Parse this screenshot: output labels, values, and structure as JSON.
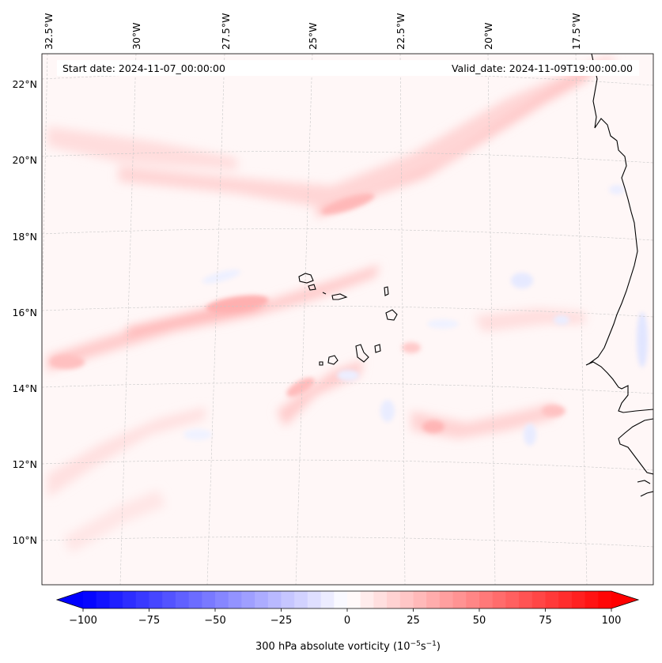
{
  "map": {
    "header": {
      "start_label": "Start date: 2024-11-07_00:00:00",
      "valid_label": "Valid_date: 2024-11-09T19:00:00.00"
    },
    "lon_labels": [
      "32.5°W",
      "30°W",
      "27.5°W",
      "25°W",
      "22.5°W",
      "20°W",
      "17.5°W"
    ],
    "lat_labels": [
      "22°N",
      "20°N",
      "18°N",
      "16°N",
      "14°N",
      "12°N",
      "10°N"
    ],
    "features": [
      "Cape Verde islands",
      "West African coastline"
    ]
  },
  "colorbar": {
    "title_main": "300 hPa absolute vorticity (10",
    "title_exp1": "−5",
    "title_mid": "s",
    "title_exp2": "−1",
    "title_end": ")",
    "ticks": [
      "−100",
      "−75",
      "−50",
      "−25",
      "0",
      "25",
      "50",
      "75",
      "100"
    ],
    "min": -100,
    "max": 100,
    "step": 5,
    "low_color": "#0000ff",
    "mid_color": "#ffffff",
    "high_color": "#ff0000"
  }
}
